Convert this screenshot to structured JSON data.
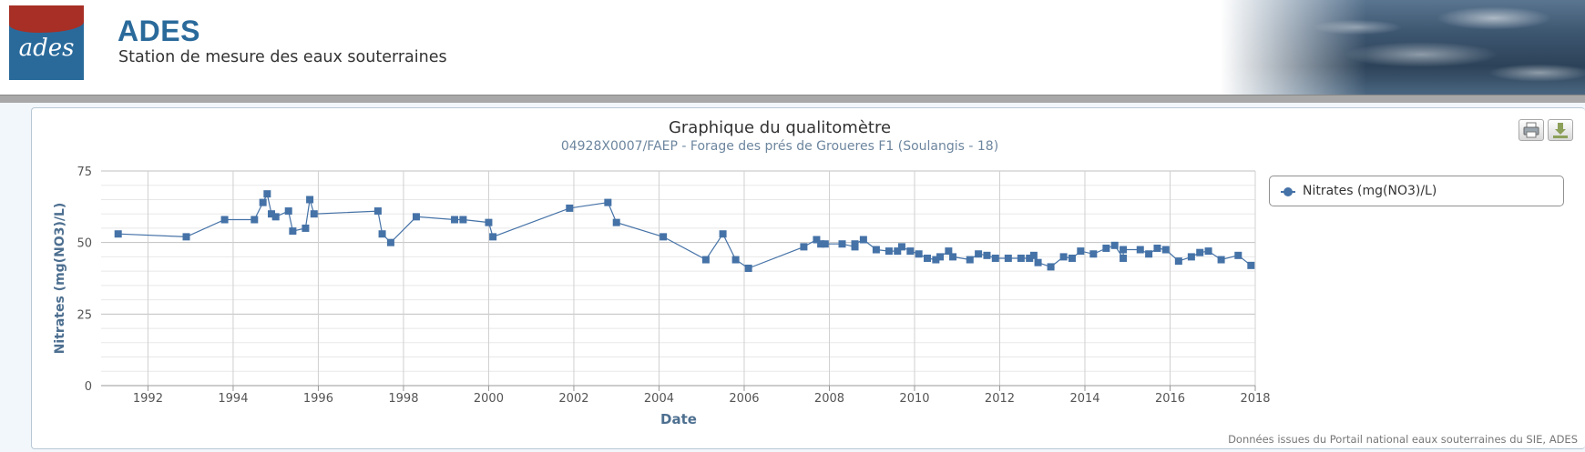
{
  "header": {
    "logo_text": "ades",
    "brand": "ADES",
    "subtitle": "Station de mesure des eaux souterraines"
  },
  "toolbar": {
    "print_icon": "printer-icon",
    "download_icon": "download-icon"
  },
  "credits": "Données issues du Portail national eaux souterraines du SIE, ADES",
  "chart_data": {
    "type": "line",
    "title": "Graphique du qualitomètre",
    "subtitle": "04928X0007/FAEP - Forage des prés de Groueres F1 (Soulangis - 18)",
    "xlabel": "Date",
    "ylabel": "Nitrates (mg(NO3)/L)",
    "ylim": [
      0,
      75
    ],
    "xlim": [
      1990.9,
      2018.0
    ],
    "x_ticks": [
      "1992",
      "1994",
      "1996",
      "1998",
      "2000",
      "2002",
      "2004",
      "2006",
      "2008",
      "2010",
      "2012",
      "2014",
      "2016",
      "2018"
    ],
    "y_ticks": [
      "0",
      "25",
      "50",
      "75"
    ],
    "grid": true,
    "legend_position": "right",
    "colors": {
      "series": "#4572a7",
      "axis_label": "#4d6f90"
    },
    "series": [
      {
        "name": "Nitrates (mg(NO3)/L)",
        "points": [
          [
            1991.3,
            53
          ],
          [
            1992.9,
            52
          ],
          [
            1993.8,
            58
          ],
          [
            1994.5,
            58
          ],
          [
            1994.7,
            64
          ],
          [
            1994.8,
            67
          ],
          [
            1994.9,
            60
          ],
          [
            1995.0,
            59
          ],
          [
            1995.3,
            61
          ],
          [
            1995.4,
            54
          ],
          [
            1995.7,
            55
          ],
          [
            1995.8,
            65
          ],
          [
            1995.9,
            60
          ],
          [
            1997.4,
            61
          ],
          [
            1997.5,
            53
          ],
          [
            1997.7,
            50
          ],
          [
            1998.3,
            59
          ],
          [
            1999.2,
            58
          ],
          [
            1999.4,
            58
          ],
          [
            2000.0,
            57
          ],
          [
            2000.1,
            52
          ],
          [
            2001.9,
            62
          ],
          [
            2002.8,
            64
          ],
          [
            2003.0,
            57
          ],
          [
            2004.1,
            52
          ],
          [
            2005.1,
            44
          ],
          [
            2005.5,
            53
          ],
          [
            2005.8,
            44
          ],
          [
            2006.1,
            41
          ],
          [
            2007.4,
            48.5
          ],
          [
            2007.7,
            51
          ],
          [
            2007.8,
            49.5
          ],
          [
            2007.9,
            49.5
          ],
          [
            2008.3,
            49.5
          ],
          [
            2008.6,
            48.5
          ],
          [
            2008.6,
            49.5
          ],
          [
            2008.8,
            51
          ],
          [
            2009.1,
            47.5
          ],
          [
            2009.4,
            47
          ],
          [
            2009.6,
            47
          ],
          [
            2009.7,
            48.5
          ],
          [
            2009.9,
            47
          ],
          [
            2010.1,
            46
          ],
          [
            2010.3,
            44.5
          ],
          [
            2010.5,
            44
          ],
          [
            2010.6,
            45
          ],
          [
            2010.8,
            47
          ],
          [
            2010.9,
            45
          ],
          [
            2011.3,
            44
          ],
          [
            2011.5,
            46
          ],
          [
            2011.7,
            45.5
          ],
          [
            2011.9,
            44.5
          ],
          [
            2012.2,
            44.5
          ],
          [
            2012.5,
            44.5
          ],
          [
            2012.7,
            44.5
          ],
          [
            2012.8,
            45.5
          ],
          [
            2012.9,
            43
          ],
          [
            2013.2,
            41.5
          ],
          [
            2013.5,
            45
          ],
          [
            2013.7,
            44.5
          ],
          [
            2013.9,
            47
          ],
          [
            2014.2,
            46
          ],
          [
            2014.5,
            48
          ],
          [
            2014.7,
            49
          ],
          [
            2014.9,
            44.5
          ],
          [
            2014.9,
            47.5
          ],
          [
            2015.3,
            47.5
          ],
          [
            2015.5,
            46
          ],
          [
            2015.7,
            48
          ],
          [
            2015.9,
            47.5
          ],
          [
            2016.2,
            43.5
          ],
          [
            2016.5,
            45
          ],
          [
            2016.7,
            46.5
          ],
          [
            2016.9,
            47
          ],
          [
            2017.2,
            44
          ],
          [
            2017.6,
            45.5
          ],
          [
            2017.9,
            42
          ]
        ]
      }
    ]
  }
}
